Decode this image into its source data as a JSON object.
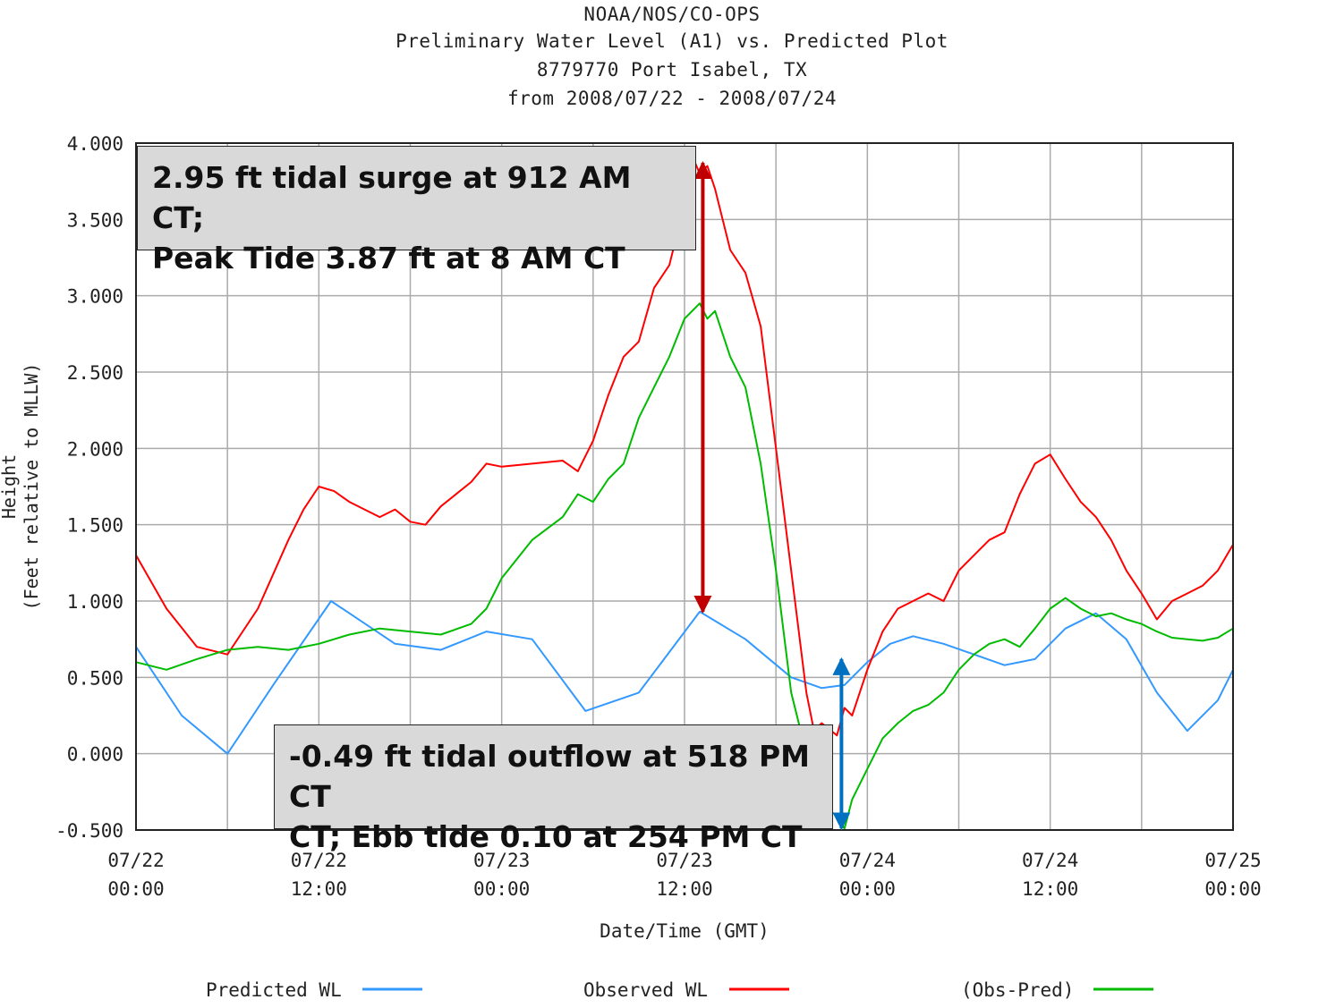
{
  "titles": {
    "line1": "NOAA/NOS/CO-OPS",
    "line2": "Preliminary  Water Level (A1) vs. Predicted Plot",
    "line3": "8779770 Port Isabel, TX",
    "line4": "from 2008/07/22 - 2008/07/24"
  },
  "annotations": {
    "surge_line1": "2.95 ft tidal surge at 912 AM CT;",
    "surge_line2": "Peak Tide 3.87 ft at 8 AM CT",
    "outflow_line1": "-0.49 ft tidal outflow at 518 PM CT",
    "outflow_line2": "CT; Ebb tide 0.10 at 254 PM CT"
  },
  "colors": {
    "predicted": "#3399ff",
    "observed": "#ff0000",
    "obs_pred": "#00bb00",
    "surge_arrow": "#c00000",
    "outflow_arrow": "#0070c0",
    "grid": "#aaaaaa"
  },
  "chart_data": {
    "type": "line",
    "title": "Preliminary  Water Level (A1) vs. Predicted Plot",
    "xlabel": "Date/Time (GMT)",
    "ylabel_line1": "Height",
    "ylabel_line2": "(Feet relative to MLLW)",
    "xlim": [
      0,
      72
    ],
    "ylim": [
      -0.5,
      4.0
    ],
    "grid": true,
    "legend_position": "bottom",
    "y_ticks": [
      {
        "value": 4.0,
        "label": "4.000"
      },
      {
        "value": 3.5,
        "label": "3.500"
      },
      {
        "value": 3.0,
        "label": "3.000"
      },
      {
        "value": 2.5,
        "label": "2.500"
      },
      {
        "value": 2.0,
        "label": "2.000"
      },
      {
        "value": 1.5,
        "label": "1.500"
      },
      {
        "value": 1.0,
        "label": "1.000"
      },
      {
        "value": 0.5,
        "label": "0.500"
      },
      {
        "value": 0.0,
        "label": "0.000"
      },
      {
        "value": -0.5,
        "label": "-0.500"
      }
    ],
    "x_ticks": [
      {
        "value": 0,
        "date": "07/22",
        "time": "00:00"
      },
      {
        "value": 12,
        "date": "07/22",
        "time": "12:00"
      },
      {
        "value": 24,
        "date": "07/23",
        "time": "00:00"
      },
      {
        "value": 36,
        "date": "07/23",
        "time": "12:00"
      },
      {
        "value": 48,
        "date": "07/24",
        "time": "00:00"
      },
      {
        "value": 60,
        "date": "07/24",
        "time": "12:00"
      },
      {
        "value": 72,
        "date": "07/25",
        "time": "00:00"
      }
    ],
    "series": [
      {
        "name": "Predicted WL",
        "color": "#3399ff",
        "x": [
          0,
          3,
          6,
          9,
          12.8,
          17,
          20,
          23,
          26,
          29.5,
          33,
          37,
          40,
          43,
          45,
          46.5,
          48,
          49.5,
          51,
          53,
          55,
          57,
          59,
          61,
          63,
          65,
          67,
          69,
          71,
          72
        ],
        "y": [
          0.7,
          0.25,
          0.0,
          0.45,
          1.0,
          0.72,
          0.68,
          0.8,
          0.75,
          0.28,
          0.4,
          0.93,
          0.75,
          0.5,
          0.43,
          0.45,
          0.6,
          0.72,
          0.77,
          0.72,
          0.65,
          0.58,
          0.62,
          0.82,
          0.92,
          0.75,
          0.4,
          0.15,
          0.35,
          0.55
        ]
      },
      {
        "name": "Observed WL",
        "color": "#ff0000",
        "x": [
          0,
          2,
          4,
          6,
          8,
          10,
          11,
          12,
          13,
          14,
          15,
          16,
          17,
          18,
          19,
          20,
          22,
          23,
          24,
          26,
          28,
          29,
          30,
          31,
          32,
          33,
          34,
          35,
          36,
          36.7,
          37,
          37.5,
          38,
          39,
          40,
          41,
          42,
          43,
          44,
          44.5,
          45,
          46,
          46.5,
          47,
          48,
          49,
          50,
          51,
          52,
          53,
          54,
          55,
          56,
          57,
          58,
          59,
          60,
          61,
          62,
          63,
          64,
          65,
          66,
          67,
          68,
          69,
          70,
          71,
          72
        ],
        "y": [
          1.3,
          0.95,
          0.7,
          0.65,
          0.95,
          1.4,
          1.6,
          1.75,
          1.72,
          1.65,
          1.6,
          1.55,
          1.6,
          1.52,
          1.5,
          1.62,
          1.78,
          1.9,
          1.88,
          1.9,
          1.92,
          1.85,
          2.05,
          2.35,
          2.6,
          2.7,
          3.05,
          3.2,
          3.6,
          3.87,
          3.8,
          3.85,
          3.7,
          3.3,
          3.15,
          2.8,
          2.0,
          1.2,
          0.4,
          0.15,
          0.2,
          0.12,
          0.3,
          0.25,
          0.55,
          0.8,
          0.95,
          1.0,
          1.05,
          1.0,
          1.2,
          1.3,
          1.4,
          1.45,
          1.7,
          1.9,
          1.96,
          1.8,
          1.65,
          1.55,
          1.4,
          1.2,
          1.05,
          0.88,
          1.0,
          1.05,
          1.1,
          1.2,
          1.37
        ]
      },
      {
        "name": "(Obs-Pred)",
        "color": "#00bb00",
        "x": [
          0,
          2,
          4,
          6,
          8,
          10,
          12,
          14,
          16,
          18,
          20,
          22,
          23,
          24,
          26,
          28,
          29,
          30,
          31,
          32,
          33,
          34,
          35,
          36,
          37,
          37.5,
          38,
          39,
          40,
          41,
          42,
          43,
          44,
          44.5,
          45,
          45.5,
          46,
          46.5,
          47,
          48,
          49,
          50,
          51,
          52,
          53,
          54,
          55,
          56,
          57,
          58,
          59,
          60,
          61,
          62,
          63,
          64,
          65,
          66,
          67,
          68,
          69,
          70,
          71,
          72
        ],
        "y": [
          0.6,
          0.55,
          0.62,
          0.68,
          0.7,
          0.68,
          0.72,
          0.78,
          0.82,
          0.8,
          0.78,
          0.85,
          0.95,
          1.15,
          1.4,
          1.55,
          1.7,
          1.65,
          1.8,
          1.9,
          2.2,
          2.4,
          2.6,
          2.85,
          2.95,
          2.85,
          2.9,
          2.6,
          2.4,
          1.9,
          1.2,
          0.4,
          0.0,
          -0.1,
          -0.3,
          -0.38,
          -0.4,
          -0.49,
          -0.3,
          -0.1,
          0.1,
          0.2,
          0.28,
          0.32,
          0.4,
          0.55,
          0.65,
          0.72,
          0.75,
          0.7,
          0.82,
          0.95,
          1.02,
          0.95,
          0.9,
          0.92,
          0.88,
          0.85,
          0.8,
          0.76,
          0.75,
          0.74,
          0.76,
          0.82
        ]
      }
    ]
  }
}
